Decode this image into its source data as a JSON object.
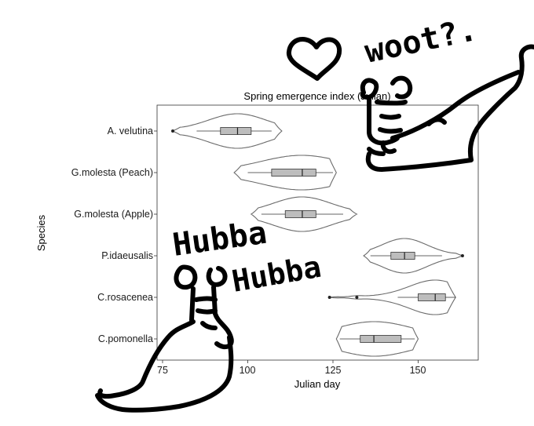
{
  "chart_data": {
    "type": "violin",
    "title": "Spring emergence index (Julian)",
    "xlabel": "Julian day",
    "ylabel": "Species",
    "xlim": [
      74,
      168
    ],
    "x_ticks": [
      75,
      100,
      125,
      150
    ],
    "grid": false,
    "orientation": "horizontal",
    "categories": [
      "A. velutina",
      "G.molesta (Peach)",
      "G.molesta (Apple)",
      "P.idaeusalis",
      "C.rosacenea",
      "C.pomonella"
    ],
    "series": [
      {
        "category": "A. velutina",
        "range": [
          78,
          110
        ],
        "q1": 92,
        "median": 97,
        "q3": 101,
        "whisker": [
          85,
          107
        ],
        "outliers": [
          78
        ]
      },
      {
        "category": "G.molesta (Peach)",
        "range": [
          96,
          126
        ],
        "q1": 107,
        "median": 116,
        "q3": 120,
        "whisker": [
          100,
          125
        ],
        "outliers": []
      },
      {
        "category": "G.molesta (Apple)",
        "range": [
          101,
          132
        ],
        "q1": 111,
        "median": 116,
        "q3": 120,
        "whisker": [
          104,
          128
        ],
        "outliers": []
      },
      {
        "category": "P.idaeusalis",
        "range": [
          134,
          163
        ],
        "q1": 142,
        "median": 146,
        "q3": 149,
        "whisker": [
          136,
          157
        ],
        "outliers": [
          163
        ]
      },
      {
        "category": "C.rosacenea",
        "range": [
          124,
          161
        ],
        "q1": 150,
        "median": 155,
        "q3": 158,
        "whisker": [
          144,
          161
        ],
        "outliers": [
          124,
          132
        ]
      },
      {
        "category": "C.pomonella",
        "range": [
          126,
          150
        ],
        "q1": 133,
        "median": 137,
        "q3": 145,
        "whisker": [
          127,
          149
        ],
        "outliers": []
      }
    ]
  },
  "annotations": {
    "scribble_top": "woot?.",
    "scribble_left_line1": "Hubba",
    "scribble_left_line2": "Hubba"
  }
}
